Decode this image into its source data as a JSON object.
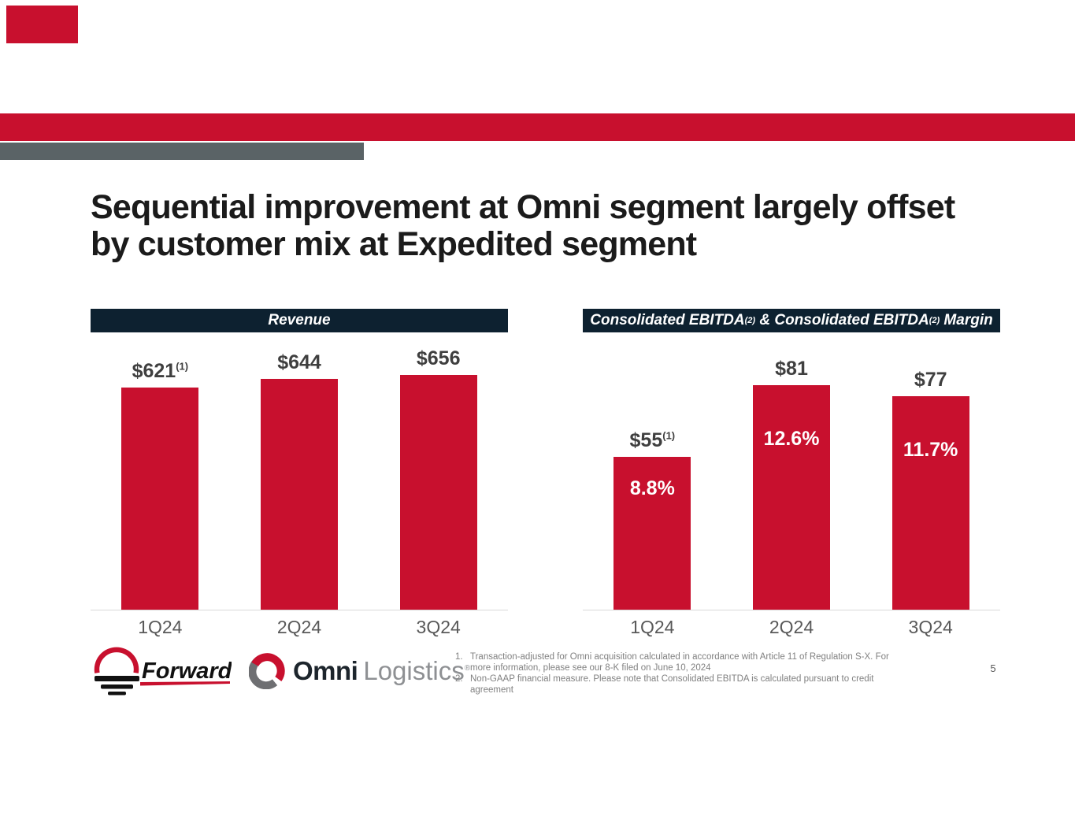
{
  "slide": {
    "title_line1": "Sequential improvement at Omni segment largely offset",
    "title_line2": "by customer mix at Expedited segment",
    "page_number": "5"
  },
  "colors": {
    "brand_red": "#C8102E",
    "header_navy": "#0D2130",
    "top_gray_bar": "#5A6366",
    "value_label_gray": "#3F3F3F",
    "category_gray": "#595959",
    "footnote_gray": "#808080",
    "baseline_gray": "#D9D9D9"
  },
  "chart_data": [
    {
      "type": "bar",
      "title": "Revenue",
      "title_parts": [
        {
          "t": "Revenue"
        }
      ],
      "categories": [
        "1Q24",
        "2Q24",
        "3Q24"
      ],
      "values": [
        621,
        644,
        656
      ],
      "data_labels": [
        "$621",
        "$644",
        "$656"
      ],
      "data_label_notes": [
        "(1)",
        "",
        ""
      ],
      "ylim": [
        0,
        775
      ],
      "grid": "off",
      "legend": "none",
      "bar_color": "#C8102E"
    },
    {
      "type": "bar",
      "title": "Consolidated EBITDA(2) & Consolidated EBITDA(2) Margin",
      "title_parts": [
        {
          "t": "Consolidated EBITDA"
        },
        {
          "t": "(2)",
          "sup": true
        },
        {
          "t": " & Consolidated EBITDA"
        },
        {
          "t": "(2)",
          "sup": true
        },
        {
          "t": " Margin"
        }
      ],
      "categories": [
        "1Q24",
        "2Q24",
        "3Q24"
      ],
      "values": [
        55,
        81,
        77
      ],
      "data_labels": [
        "$55",
        "$81",
        "$77"
      ],
      "data_label_notes": [
        "(1)",
        "",
        ""
      ],
      "series": [
        {
          "name": "Consolidated EBITDA",
          "values": [
            55,
            81,
            77
          ]
        },
        {
          "name": "Consolidated EBITDA Margin",
          "values": [
            "8.8%",
            "12.6%",
            "11.7%"
          ]
        }
      ],
      "margin_labels": [
        "8.8%",
        "12.6%",
        "11.7%"
      ],
      "ylim": [
        0,
        100
      ],
      "grid": "off",
      "legend": "none",
      "bar_color": "#C8102E"
    }
  ],
  "logos": {
    "forward": {
      "name": "Forward",
      "tm": "™"
    },
    "omni": {
      "word1": "Omni",
      "word2": "Logistics",
      "reg": "®"
    }
  },
  "footnotes": [
    {
      "num": "1.",
      "text": "Transaction-adjusted for Omni acquisition calculated in accordance with Article 11 of Regulation S-X. For more information, please see our 8-K filed on June 10, 2024"
    },
    {
      "num": "2.",
      "text": "Non-GAAP financial measure. Please note that Consolidated EBITDA is calculated pursuant to credit agreement"
    }
  ]
}
